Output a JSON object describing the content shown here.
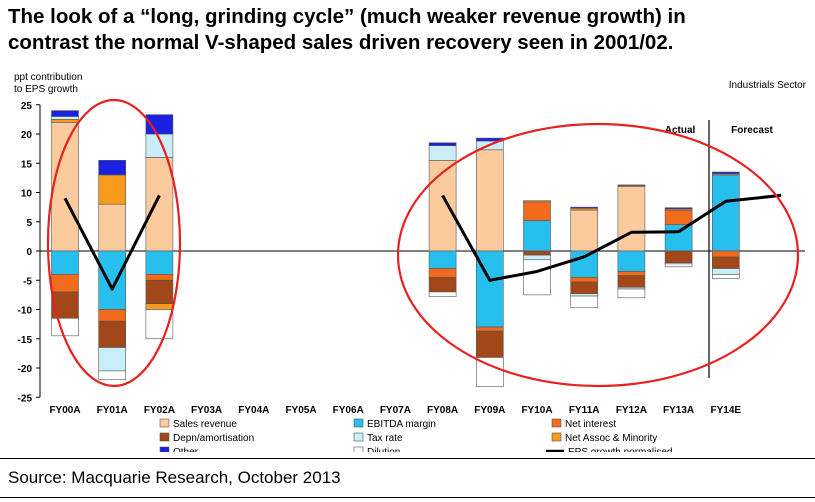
{
  "headline": {
    "line1": "The look of a “long, grinding cycle” (much weaker revenue growth) in",
    "line2": "contrast the normal V-shaped sales driven recovery seen in 2001/02."
  },
  "source": "Source: Macquarie Research, October 2013",
  "chart_data": {
    "type": "bar",
    "stacked": true,
    "ylabel_line1": "ppt contribution",
    "ylabel_line2": "to EPS growth",
    "sector_label": "Industrials Sector",
    "actual_label": "Actual",
    "forecast_label": "Forecast",
    "ylim": [
      -25,
      25
    ],
    "yticks": [
      25,
      20,
      15,
      10,
      5,
      0,
      -5,
      -10,
      -15,
      -20,
      -25
    ],
    "categories": [
      "FY00A",
      "FY01A",
      "FY02A",
      "FY03A",
      "FY04A",
      "FY05A",
      "FY06A",
      "FY07A",
      "FY08A",
      "FY09A",
      "FY10A",
      "FY11A",
      "FY12A",
      "FY13A",
      "FY14E"
    ],
    "series": [
      {
        "name": "Sales revenue",
        "color": "#FBCB9D",
        "values": [
          22,
          8,
          16,
          0,
          0,
          0,
          0,
          0,
          15.5,
          17.3,
          0,
          7,
          11,
          0,
          0
        ]
      },
      {
        "name": "EBITDA margin",
        "color": "#27BFEE",
        "values": [
          -4,
          -10,
          -4,
          0,
          0,
          0,
          0,
          0,
          -3,
          -13,
          5.2,
          -4.5,
          -3.5,
          4.5,
          13
        ]
      },
      {
        "name": "Net interest",
        "color": "#F26A1B",
        "values": [
          -3,
          -2,
          -1,
          0,
          0,
          0,
          0,
          0,
          -1.5,
          -0.7,
          3.2,
          -0.8,
          -0.7,
          2.5,
          -1
        ]
      },
      {
        "name": "Depn/amortisation",
        "color": "#A24718",
        "values": [
          -4.5,
          -4.5,
          -4,
          0,
          0,
          0,
          0,
          0,
          -2.5,
          -4.5,
          -0.7,
          -2,
          -2,
          -2,
          -2
        ]
      },
      {
        "name": "Net Assoc & Minority",
        "color": "#F79A1E",
        "values": [
          0.5,
          5,
          -1,
          0,
          0,
          0,
          0,
          0,
          0,
          0,
          0.2,
          0.3,
          0.2,
          0.2,
          0.2
        ]
      },
      {
        "name": "Tax rate",
        "color": "#C9EEF8",
        "values": [
          0.5,
          -4,
          4,
          0,
          0,
          0,
          0,
          0,
          2.5,
          1.5,
          -0.8,
          -0.4,
          -0.3,
          -0.2,
          -1
        ]
      },
      {
        "name": "Other",
        "color": "#1C20E2",
        "values": [
          1,
          2.5,
          3.3,
          0,
          0,
          0,
          0,
          0,
          0.5,
          0.5,
          0,
          0.2,
          0.1,
          0.2,
          0.3
        ]
      },
      {
        "name": "Dilution",
        "color": "#FFFFFF",
        "values": [
          -3,
          -1.5,
          -5,
          0,
          0,
          0,
          0,
          0,
          -0.8,
          -5,
          -6,
          -2,
          -1.5,
          -0.5,
          -0.7
        ]
      }
    ],
    "line": {
      "name": "EPS growth normalised",
      "color": "#000000",
      "values": [
        9,
        -6.5,
        9.5,
        null,
        null,
        null,
        null,
        null,
        9.5,
        -5,
        -3.5,
        -1,
        3.2,
        3.3,
        8.5
      ],
      "tail_value": 9.5
    },
    "annotations": [
      "red ellipse around FY00A-FY02A",
      "red ellipse around FY08A-FY14E",
      "vertical divider between FY13A and FY14E"
    ]
  }
}
